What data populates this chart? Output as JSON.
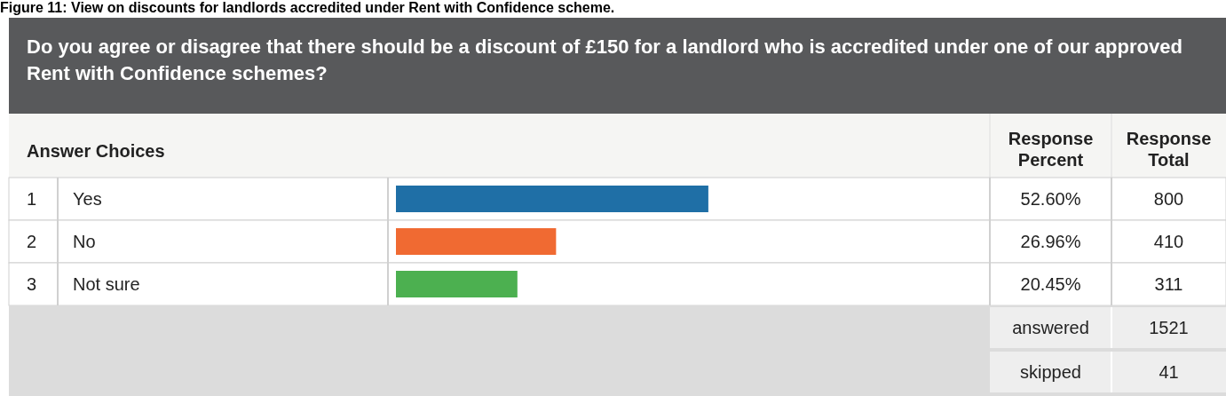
{
  "chart_data": {
    "type": "bar",
    "orientation": "horizontal",
    "title": "Figure 11: View on discounts for landlords accredited under Rent with Confidence scheme.",
    "subtitle": "Do you agree or disagree that there should be a discount of £150 for a landlord who is accredited under one of our approved Rent with Confidence schemes?",
    "categories": [
      "Yes",
      "No",
      "Not sure"
    ],
    "values": [
      52.6,
      26.96,
      20.45
    ],
    "colors": [
      "#1f6fa6",
      "#f06a32",
      "#4cb050"
    ],
    "value_labels": [
      "52.60%",
      "26.96%",
      "20.45%"
    ],
    "xlim": [
      0,
      100
    ],
    "annotations": [
      "Answer Choices",
      "Response Percent",
      "Response Total",
      "answered",
      "1521",
      "skipped",
      "41",
      "1",
      "2",
      "3",
      "800",
      "410",
      "311"
    ]
  }
}
